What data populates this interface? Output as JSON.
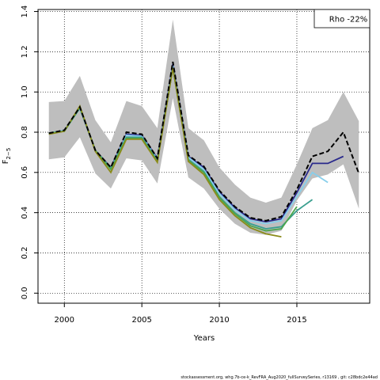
{
  "chart_data": {
    "type": "line",
    "xlabel": "Years",
    "ylabel": "F",
    "ylabel_sub": "2−5",
    "xlim": [
      1998.3,
      2019.7
    ],
    "ylim": [
      -0.05,
      1.41
    ],
    "x_ticks": [
      2000,
      2005,
      2010,
      2015
    ],
    "y_ticks": [
      0.0,
      0.2,
      0.4,
      0.6,
      0.8,
      1.0,
      1.2,
      1.4
    ],
    "grid": true,
    "legend": {
      "text": "Rho -22%",
      "placement": "top-right"
    },
    "footer": "stockassessment.org,  whg.7b-ce-k_RevFRA_Aug2020_fullSurveySeries,  r13169 ,  git: c28bdc2e44ad",
    "band": {
      "color": "#bebebe",
      "x": [
        1999,
        2000,
        2001,
        2002,
        2003,
        2004,
        2005,
        2006,
        2007,
        2008,
        2009,
        2010,
        2011,
        2012,
        2013,
        2014,
        2015,
        2016,
        2017,
        2018,
        2019
      ],
      "upper": [
        0.95,
        0.955,
        1.08,
        0.86,
        0.75,
        0.955,
        0.93,
        0.82,
        1.36,
        0.82,
        0.76,
        0.625,
        0.54,
        0.475,
        0.45,
        0.475,
        0.64,
        0.82,
        0.86,
        1.0,
        0.855
      ],
      "lower": [
        0.665,
        0.675,
        0.775,
        0.595,
        0.52,
        0.67,
        0.66,
        0.545,
        0.97,
        0.575,
        0.52,
        0.42,
        0.345,
        0.3,
        0.29,
        0.31,
        0.46,
        0.57,
        0.59,
        0.64,
        0.42
      ]
    },
    "series": [
      {
        "color": "#000000",
        "style": "main",
        "x": [
          1999,
          2000,
          2001,
          2002,
          2003,
          2004,
          2005,
          2006,
          2007,
          2008,
          2009,
          2010,
          2011,
          2012,
          2013,
          2014,
          2015,
          2016,
          2017,
          2018,
          2019
        ],
        "values": [
          0.795,
          0.81,
          0.925,
          0.71,
          0.625,
          0.8,
          0.79,
          0.67,
          1.15,
          0.685,
          0.63,
          0.51,
          0.43,
          0.375,
          0.36,
          0.38,
          0.515,
          0.68,
          0.705,
          0.8,
          0.595
        ]
      },
      {
        "color": "#2a2a8c",
        "style": "peel",
        "x": [
          1999,
          2000,
          2001,
          2002,
          2003,
          2004,
          2005,
          2006,
          2007,
          2008,
          2009,
          2010,
          2011,
          2012,
          2013,
          2014,
          2015,
          2016,
          2017,
          2018
        ],
        "values": [
          0.795,
          0.81,
          0.92,
          0.71,
          0.625,
          0.79,
          0.785,
          0.67,
          1.14,
          0.68,
          0.625,
          0.505,
          0.425,
          0.37,
          0.355,
          0.37,
          0.5,
          0.645,
          0.645,
          0.68
        ]
      },
      {
        "color": "#87ceeb",
        "style": "peel",
        "x": [
          1999,
          2000,
          2001,
          2002,
          2003,
          2004,
          2005,
          2006,
          2007,
          2008,
          2009,
          2010,
          2011,
          2012,
          2013,
          2014,
          2015,
          2016,
          2017
        ],
        "values": [
          0.795,
          0.81,
          0.92,
          0.71,
          0.62,
          0.785,
          0.78,
          0.665,
          1.13,
          0.675,
          0.615,
          0.495,
          0.415,
          0.36,
          0.345,
          0.36,
          0.48,
          0.6,
          0.55
        ]
      },
      {
        "color": "#3a9f8f",
        "style": "peel",
        "x": [
          1999,
          2000,
          2001,
          2002,
          2003,
          2004,
          2005,
          2006,
          2007,
          2008,
          2009,
          2010,
          2011,
          2012,
          2013,
          2014,
          2015,
          2016
        ],
        "values": [
          0.795,
          0.805,
          0.92,
          0.71,
          0.62,
          0.775,
          0.775,
          0.66,
          1.12,
          0.665,
          0.605,
          0.48,
          0.4,
          0.345,
          0.32,
          0.33,
          0.41,
          0.465
        ]
      },
      {
        "color": "#4ca64c",
        "style": "peel",
        "x": [
          1999,
          2000,
          2001,
          2002,
          2003,
          2004,
          2005,
          2006,
          2007,
          2008,
          2009,
          2010,
          2011,
          2012,
          2013,
          2014,
          2015
        ],
        "values": [
          0.795,
          0.805,
          0.925,
          0.71,
          0.615,
          0.77,
          0.77,
          0.655,
          1.12,
          0.66,
          0.6,
          0.475,
          0.395,
          0.335,
          0.31,
          0.32,
          0.43
        ]
      },
      {
        "color": "#8b8b1a",
        "style": "peel",
        "x": [
          1999,
          2000,
          2001,
          2002,
          2003,
          2004,
          2005,
          2006,
          2007,
          2008,
          2009,
          2010,
          2011,
          2012,
          2013,
          2014
        ],
        "values": [
          0.79,
          0.805,
          0.93,
          0.705,
          0.6,
          0.765,
          0.765,
          0.65,
          1.12,
          0.655,
          0.59,
          0.465,
          0.385,
          0.325,
          0.295,
          0.28
        ]
      }
    ]
  }
}
